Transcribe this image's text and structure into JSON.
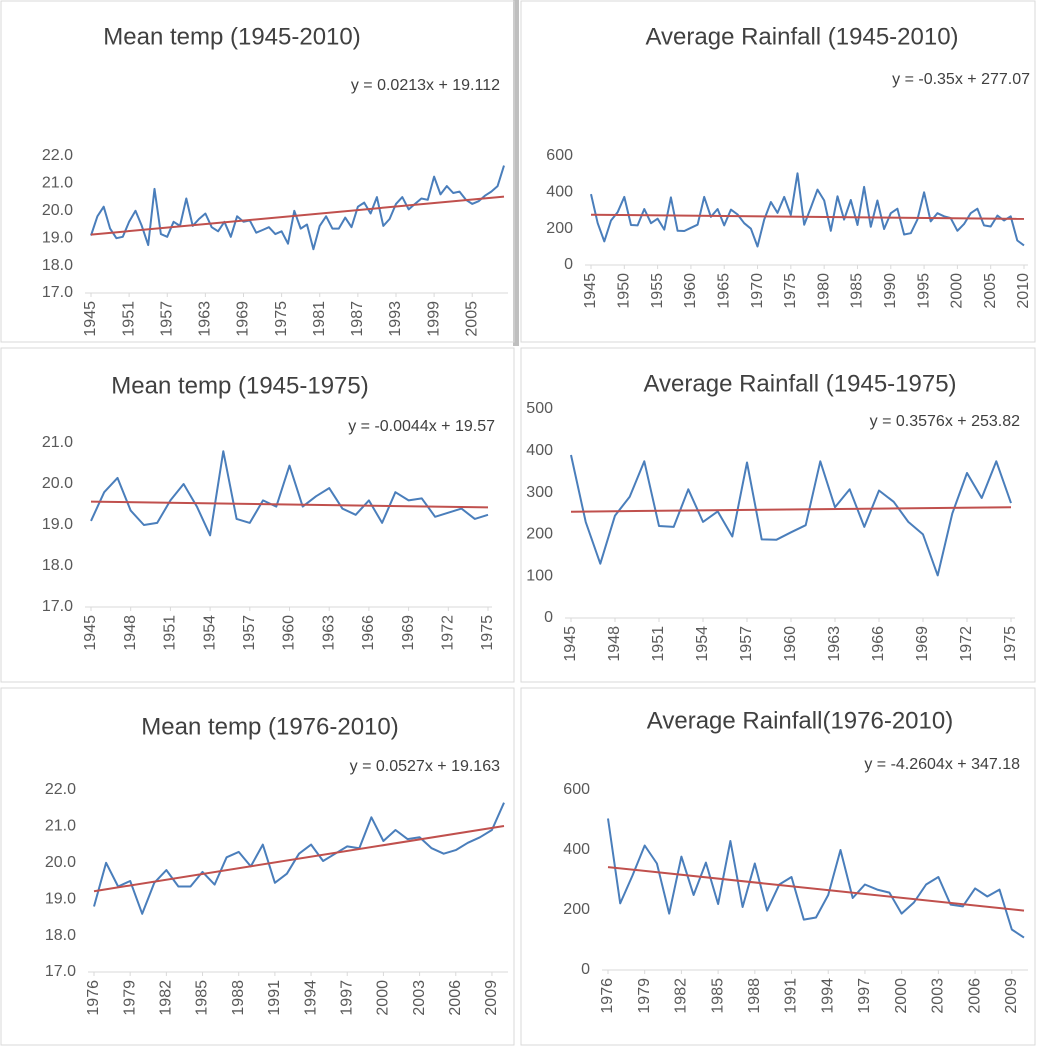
{
  "chart_data": [
    {
      "type": "line",
      "title": "Mean temp (1945-2010)",
      "annotation": "y = 0.0213x + 19.112",
      "x": [
        1945,
        1946,
        1947,
        1948,
        1949,
        1950,
        1951,
        1952,
        1953,
        1954,
        1955,
        1956,
        1957,
        1958,
        1959,
        1960,
        1961,
        1962,
        1963,
        1964,
        1965,
        1966,
        1967,
        1968,
        1969,
        1970,
        1971,
        1972,
        1973,
        1974,
        1975,
        1976,
        1977,
        1978,
        1979,
        1980,
        1981,
        1982,
        1983,
        1984,
        1985,
        1986,
        1987,
        1988,
        1989,
        1990,
        1991,
        1992,
        1993,
        1994,
        1995,
        1996,
        1997,
        1998,
        1999,
        2000,
        2001,
        2002,
        2003,
        2004,
        2005,
        2006,
        2007,
        2008,
        2009,
        2010
      ],
      "series": [
        {
          "color": "#4a7ebb",
          "values": [
            19.1,
            19.8,
            20.15,
            19.35,
            19.0,
            19.05,
            19.6,
            20.0,
            19.45,
            18.75,
            20.8,
            19.15,
            19.05,
            19.6,
            19.45,
            20.45,
            19.45,
            19.7,
            19.9,
            19.4,
            19.25,
            19.6,
            19.05,
            19.8,
            19.6,
            19.65,
            19.2,
            19.3,
            19.4,
            19.15,
            19.25,
            18.8,
            20.0,
            19.35,
            19.5,
            18.6,
            19.45,
            19.8,
            19.35,
            19.35,
            19.75,
            19.4,
            20.15,
            20.3,
            19.9,
            20.5,
            19.45,
            19.7,
            20.25,
            20.5,
            20.05,
            20.25,
            20.45,
            20.4,
            21.25,
            20.6,
            20.9,
            20.65,
            20.7,
            20.4,
            20.25,
            20.35,
            20.55,
            20.7,
            20.9,
            21.65
          ]
        }
      ],
      "trendline": {
        "x": [
          1945,
          2010
        ],
        "values": [
          19.13,
          20.52
        ],
        "color": "#c0504d"
      },
      "xlim": [
        1945,
        2010
      ],
      "xticks": [
        1945,
        1951,
        1957,
        1963,
        1969,
        1975,
        1981,
        1987,
        1993,
        1999,
        2005
      ],
      "ylim": [
        17,
        22
      ],
      "yticks": [
        {
          "value": 17,
          "label": "17.0"
        },
        {
          "value": 18,
          "label": "18.0"
        },
        {
          "value": 19,
          "label": "19.0"
        },
        {
          "value": 20,
          "label": "20.0"
        },
        {
          "value": 21,
          "label": "21.0"
        },
        {
          "value": 22,
          "label": "22.0"
        }
      ]
    },
    {
      "type": "line",
      "title": "Average Rainfall (1945-2010)",
      "annotation": "y = -0.35x + 277.07",
      "x": [
        1945,
        1946,
        1947,
        1948,
        1949,
        1950,
        1951,
        1952,
        1953,
        1954,
        1955,
        1956,
        1957,
        1958,
        1959,
        1960,
        1961,
        1962,
        1963,
        1964,
        1965,
        1966,
        1967,
        1968,
        1969,
        1970,
        1971,
        1972,
        1973,
        1974,
        1975,
        1976,
        1977,
        1978,
        1979,
        1980,
        1981,
        1982,
        1983,
        1984,
        1985,
        1986,
        1987,
        1988,
        1989,
        1990,
        1991,
        1992,
        1993,
        1994,
        1995,
        1996,
        1997,
        1998,
        1999,
        2000,
        2001,
        2002,
        2003,
        2004,
        2005,
        2006,
        2007,
        2008,
        2009,
        2010
      ],
      "series": [
        {
          "color": "#4a7ebb",
          "values": [
            390,
            230,
            130,
            245,
            290,
            375,
            220,
            218,
            308,
            230,
            255,
            195,
            372,
            188,
            187,
            205,
            222,
            375,
            265,
            308,
            218,
            305,
            278,
            230,
            200,
            102,
            250,
            347,
            287,
            375,
            275,
            505,
            222,
            315,
            415,
            355,
            188,
            378,
            250,
            358,
            220,
            430,
            210,
            355,
            198,
            285,
            310,
            168,
            175,
            250,
            400,
            240,
            285,
            268,
            258,
            188,
            225,
            285,
            310,
            218,
            212,
            272,
            245,
            268,
            135,
            108
          ]
        }
      ],
      "trendline": {
        "x": [
          1945,
          2010
        ],
        "values": [
          276.7,
          254.0
        ],
        "color": "#c0504d"
      },
      "xlim": [
        1945,
        2010
      ],
      "xticks": [
        1945,
        1950,
        1955,
        1960,
        1965,
        1970,
        1975,
        1980,
        1985,
        1990,
        1995,
        2000,
        2005,
        2010
      ],
      "ylim": [
        0,
        600
      ],
      "yticks": [
        0,
        200,
        400,
        600
      ]
    },
    {
      "type": "line",
      "title": "Mean temp (1945-1975)",
      "annotation": "y = -0.0044x + 19.57",
      "x": [
        1945,
        1946,
        1947,
        1948,
        1949,
        1950,
        1951,
        1952,
        1953,
        1954,
        1955,
        1956,
        1957,
        1958,
        1959,
        1960,
        1961,
        1962,
        1963,
        1964,
        1965,
        1966,
        1967,
        1968,
        1969,
        1970,
        1971,
        1972,
        1973,
        1974,
        1975
      ],
      "series": [
        {
          "color": "#4a7ebb",
          "values": [
            19.1,
            19.8,
            20.15,
            19.35,
            19.0,
            19.05,
            19.6,
            20.0,
            19.45,
            18.75,
            20.8,
            19.15,
            19.05,
            19.6,
            19.45,
            20.45,
            19.45,
            19.7,
            19.9,
            19.4,
            19.25,
            19.6,
            19.05,
            19.8,
            19.6,
            19.65,
            19.2,
            19.3,
            19.4,
            19.15,
            19.25
          ]
        }
      ],
      "trendline": {
        "x": [
          1945,
          1975
        ],
        "values": [
          19.57,
          19.43
        ],
        "color": "#c0504d"
      },
      "xlim": [
        1945,
        1975
      ],
      "xticks": [
        1945,
        1948,
        1951,
        1954,
        1957,
        1960,
        1963,
        1966,
        1969,
        1972,
        1975
      ],
      "ylim": [
        17,
        21
      ],
      "yticks": [
        {
          "value": 17,
          "label": "17.0"
        },
        {
          "value": 18,
          "label": "18.0"
        },
        {
          "value": 19,
          "label": "19.0"
        },
        {
          "value": 20,
          "label": "20.0"
        },
        {
          "value": 21,
          "label": "21.0"
        }
      ]
    },
    {
      "type": "line",
      "title": "Average Rainfall (1945-1975)",
      "annotation": "y = 0.3576x + 253.82",
      "x": [
        1945,
        1946,
        1947,
        1948,
        1949,
        1950,
        1951,
        1952,
        1953,
        1954,
        1955,
        1956,
        1957,
        1958,
        1959,
        1960,
        1961,
        1962,
        1963,
        1964,
        1965,
        1966,
        1967,
        1968,
        1969,
        1970,
        1971,
        1972,
        1973,
        1974,
        1975
      ],
      "series": [
        {
          "color": "#4a7ebb",
          "values": [
            390,
            230,
            130,
            245,
            290,
            375,
            220,
            218,
            308,
            230,
            255,
            195,
            372,
            188,
            187,
            205,
            222,
            375,
            265,
            308,
            218,
            305,
            278,
            230,
            200,
            102,
            250,
            347,
            287,
            375,
            275
          ]
        }
      ],
      "trendline": {
        "x": [
          1945,
          1975
        ],
        "values": [
          254.2,
          264.9
        ],
        "color": "#c0504d"
      },
      "xlim": [
        1945,
        1975
      ],
      "xticks": [
        1945,
        1948,
        1951,
        1954,
        1957,
        1960,
        1963,
        1966,
        1969,
        1972,
        1975
      ],
      "ylim": [
        0,
        500
      ],
      "yticks": [
        0,
        100,
        200,
        300,
        400,
        500
      ]
    },
    {
      "type": "line",
      "title": "Mean temp (1976-2010)",
      "annotation": "y = 0.0527x + 19.163",
      "x": [
        1976,
        1977,
        1978,
        1979,
        1980,
        1981,
        1982,
        1983,
        1984,
        1985,
        1986,
        1987,
        1988,
        1989,
        1990,
        1991,
        1992,
        1993,
        1994,
        1995,
        1996,
        1997,
        1998,
        1999,
        2000,
        2001,
        2002,
        2003,
        2004,
        2005,
        2006,
        2007,
        2008,
        2009,
        2010
      ],
      "series": [
        {
          "color": "#4a7ebb",
          "values": [
            18.8,
            20.0,
            19.35,
            19.5,
            18.6,
            19.45,
            19.8,
            19.35,
            19.35,
            19.75,
            19.4,
            20.15,
            20.3,
            19.9,
            20.5,
            19.45,
            19.7,
            20.25,
            20.5,
            20.05,
            20.25,
            20.45,
            20.4,
            21.25,
            20.6,
            20.9,
            20.65,
            20.7,
            20.4,
            20.25,
            20.35,
            20.55,
            20.7,
            20.9,
            21.65
          ]
        }
      ],
      "trendline": {
        "x": [
          1976,
          2010
        ],
        "values": [
          19.22,
          21.01
        ],
        "color": "#c0504d"
      },
      "xlim": [
        1976,
        2010
      ],
      "xticks": [
        1976,
        1979,
        1982,
        1985,
        1988,
        1991,
        1994,
        1997,
        2000,
        2003,
        2006,
        2009
      ],
      "ylim": [
        17,
        22
      ],
      "yticks": [
        {
          "value": 17,
          "label": "17.0"
        },
        {
          "value": 18,
          "label": "18.0"
        },
        {
          "value": 19,
          "label": "19.0"
        },
        {
          "value": 20,
          "label": "20.0"
        },
        {
          "value": 21,
          "label": "21.0"
        },
        {
          "value": 22,
          "label": "22.0"
        }
      ]
    },
    {
      "type": "line",
      "title": "Average Rainfall(1976-2010)",
      "annotation": "y = -4.2604x + 347.18",
      "x": [
        1976,
        1977,
        1978,
        1979,
        1980,
        1981,
        1982,
        1983,
        1984,
        1985,
        1986,
        1987,
        1988,
        1989,
        1990,
        1991,
        1992,
        1993,
        1994,
        1995,
        1996,
        1997,
        1998,
        1999,
        2000,
        2001,
        2002,
        2003,
        2004,
        2005,
        2006,
        2007,
        2008,
        2009,
        2010
      ],
      "series": [
        {
          "color": "#4a7ebb",
          "values": [
            505,
            222,
            315,
            415,
            355,
            188,
            378,
            250,
            358,
            220,
            430,
            210,
            355,
            198,
            285,
            310,
            168,
            175,
            250,
            400,
            240,
            285,
            268,
            258,
            188,
            225,
            285,
            310,
            218,
            212,
            272,
            245,
            268,
            135,
            108
          ]
        }
      ],
      "trendline": {
        "x": [
          1976,
          2010
        ],
        "values": [
          342.9,
          198.1
        ],
        "color": "#c0504d"
      },
      "xlim": [
        1976,
        2010
      ],
      "xticks": [
        1976,
        1979,
        1982,
        1985,
        1988,
        1991,
        1994,
        1997,
        2000,
        2003,
        2006,
        2009
      ],
      "ylim": [
        0,
        600
      ],
      "yticks": [
        0,
        200,
        400,
        600
      ]
    }
  ]
}
